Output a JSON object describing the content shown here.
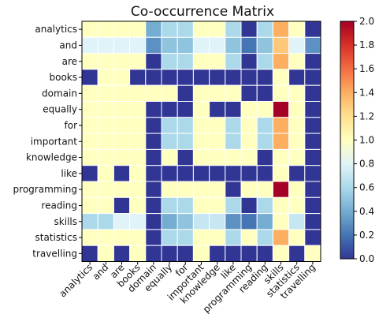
{
  "chart_data": {
    "type": "heatmap",
    "title": "Co-occurrence Matrix",
    "labels": [
      "analytics",
      "and",
      "are",
      "books",
      "domain",
      "equally",
      "for",
      "important",
      "knowledge",
      "like",
      "programming",
      "reading",
      "skills",
      "statistics",
      "travelling"
    ],
    "values": [
      [
        1.0,
        1.0,
        1.0,
        1.0,
        0.4,
        0.6,
        0.6,
        1.0,
        1.0,
        0.6,
        0.0,
        0.6,
        1.4,
        1.0,
        0.0
      ],
      [
        0.8,
        0.8,
        0.8,
        0.8,
        0.3,
        0.5,
        0.5,
        0.8,
        0.8,
        0.5,
        0.2,
        0.5,
        1.3,
        0.8,
        0.3
      ],
      [
        1.0,
        1.0,
        1.0,
        1.0,
        0.0,
        0.6,
        0.6,
        1.0,
        1.0,
        0.6,
        0.0,
        0.6,
        1.4,
        1.0,
        0.0
      ],
      [
        0.0,
        1.0,
        1.0,
        0.0,
        0.0,
        0.0,
        0.0,
        0.0,
        0.0,
        0.0,
        0.0,
        0.0,
        1.0,
        0.0,
        0.0
      ],
      [
        1.0,
        1.0,
        1.0,
        1.0,
        1.0,
        1.0,
        0.0,
        1.0,
        1.0,
        1.0,
        0.0,
        0.0,
        1.0,
        1.0,
        0.0
      ],
      [
        1.0,
        1.0,
        1.0,
        1.0,
        0.0,
        0.0,
        0.0,
        1.0,
        0.0,
        0.0,
        1.0,
        1.0,
        2.0,
        1.0,
        0.0
      ],
      [
        1.0,
        1.0,
        1.0,
        1.0,
        0.0,
        0.6,
        0.6,
        1.0,
        1.0,
        0.6,
        1.0,
        0.6,
        1.4,
        1.0,
        0.0
      ],
      [
        1.0,
        1.0,
        1.0,
        1.0,
        0.0,
        0.6,
        0.6,
        1.0,
        1.0,
        0.6,
        1.0,
        0.6,
        1.4,
        1.0,
        0.0
      ],
      [
        1.0,
        1.0,
        1.0,
        1.0,
        0.0,
        1.0,
        0.0,
        1.0,
        1.0,
        1.0,
        1.0,
        0.0,
        1.0,
        1.0,
        0.0
      ],
      [
        0.0,
        1.0,
        0.0,
        1.0,
        0.0,
        0.0,
        0.0,
        0.0,
        0.0,
        0.0,
        0.0,
        0.0,
        1.0,
        0.0,
        0.0
      ],
      [
        1.0,
        1.0,
        1.0,
        1.0,
        0.0,
        1.0,
        1.0,
        1.0,
        1.0,
        0.0,
        1.0,
        1.0,
        2.0,
        1.0,
        0.0
      ],
      [
        1.0,
        1.0,
        0.0,
        1.0,
        0.0,
        0.6,
        0.6,
        1.0,
        1.0,
        0.6,
        0.0,
        0.6,
        1.0,
        1.0,
        0.0
      ],
      [
        0.6,
        0.6,
        0.8,
        0.8,
        0.0,
        0.4,
        0.5,
        0.7,
        0.7,
        0.3,
        0.2,
        0.4,
        1.0,
        0.7,
        0.0
      ],
      [
        1.0,
        1.0,
        1.0,
        1.0,
        0.0,
        0.6,
        0.6,
        1.0,
        1.0,
        0.6,
        1.0,
        0.6,
        1.4,
        1.0,
        0.0
      ],
      [
        0.0,
        1.0,
        0.0,
        1.0,
        0.0,
        0.0,
        0.0,
        1.0,
        0.0,
        0.0,
        0.0,
        0.0,
        1.0,
        0.0,
        1.0
      ]
    ],
    "color_scale": {
      "min": 0.0,
      "max": 2.0,
      "ticks": [
        "0.0",
        "0.2",
        "0.4",
        "0.6",
        "0.8",
        "1.0",
        "1.2",
        "1.4",
        "1.6",
        "1.8",
        "2.0"
      ],
      "colormap": "RdYlBu_r",
      "stops": [
        "#313695",
        "#4575b4",
        "#74add1",
        "#abd9e9",
        "#e0f3f8",
        "#ffffbf",
        "#fee090",
        "#fdae61",
        "#f46d43",
        "#d73027",
        "#a50026"
      ]
    },
    "grid": true,
    "cell_border_color": "#ffffff"
  }
}
